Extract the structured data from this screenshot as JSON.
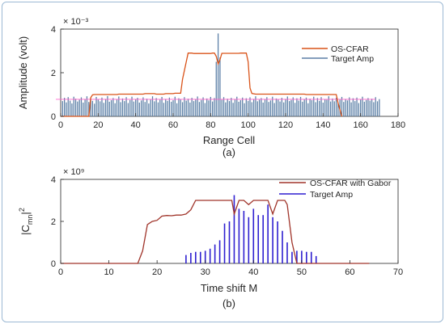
{
  "chart_data": [
    {
      "type": "bar",
      "panel_label": "(a)",
      "xlabel": "Range Cell",
      "ylabel": "Amplitude (volt)",
      "yscale_exponent": "× 10⁻³",
      "xlim": [
        0,
        180
      ],
      "ylim": [
        0,
        0.004
      ],
      "xticks": [
        "0",
        "20",
        "40",
        "60",
        "80",
        "100",
        "120",
        "140",
        "160",
        "180"
      ],
      "yticks": [
        "0",
        "2",
        "4"
      ],
      "grid": false,
      "legend_position": "right-middle",
      "colors": {
        "threshold": "#d95319",
        "bars": "#5b7fa6",
        "reference_line": "#ff66cc"
      },
      "series": [
        {
          "name": "OS-CFAR",
          "style": "line",
          "x": [
            0,
            15,
            16,
            17,
            18,
            30,
            31,
            44,
            45,
            50,
            51,
            55,
            56,
            60,
            61,
            64,
            65,
            67,
            68,
            70,
            71,
            80,
            81,
            82,
            83,
            84,
            85,
            86,
            95,
            96,
            99,
            100,
            101,
            102,
            104,
            105,
            130,
            131,
            147,
            148,
            150
          ],
          "y": [
            0,
            0,
            0.00085,
            0.00099,
            0.001,
            0.001,
            0.00102,
            0.00102,
            0.00104,
            0.00104,
            0.00102,
            0.00102,
            0.00104,
            0.00104,
            0.00106,
            0.00106,
            0.0017,
            0.0025,
            0.0029,
            0.0029,
            0.00288,
            0.00288,
            0.0029,
            0.0029,
            0.00275,
            0.0024,
            0.0026,
            0.00289,
            0.00289,
            0.0029,
            0.0029,
            0.0025,
            0.0013,
            0.00105,
            0.00102,
            0.00102,
            0.00102,
            0.001,
            0.001,
            0.0006,
            0
          ]
        },
        {
          "name": "Target Amp",
          "style": "bars",
          "x_start": 1,
          "values": [
            0.0007,
            0.00085,
            0.00064,
            0.00088,
            0.00072,
            0.00059,
            0.0009,
            0.00081,
            0.00068,
            0.00076,
            0.00087,
            0.00063,
            0.00079,
            0.00092,
            0.00066,
            0.00083,
            0.00071,
            0.00058,
            0.00089,
            0.00077,
            0.00069,
            0.00086,
            0.00062,
            0.0008,
            0.00093,
            0.00067,
            0.00074,
            0.00084,
            0.0006,
            0.00078,
            0.00091,
            0.00065,
            0.00082,
            0.0007,
            0.00088,
            0.00061,
            0.00075,
            0.0009,
            0.00068,
            0.00079,
            0.00085,
            0.00063,
            0.00073,
            0.00087,
            0.00066,
            0.00081,
            0.00059,
            0.00077,
            0.00092,
            0.00069,
            0.00084,
            0.00064,
            0.00076,
            0.00089,
            0.00062,
            0.0008,
            0.00071,
            0.00086,
            0.00067,
            0.00074,
            0.0009,
            0.0006,
            0.00083,
            0.00078,
            0.00065,
            0.00088,
            0.00072,
            0.00081,
            0.00063,
            0.00085,
            0.0007,
            0.00079,
            0.00091,
            0.00066,
            0.00075,
            0.00087,
            0.00061,
            0.00082,
            0.00073,
            0.00089,
            0.00068,
            0.00084,
            0.0025,
            0.0038,
            0.0027,
            0.00076,
            0.00088,
            0.00064,
            0.00081,
            0.0007,
            0.00085,
            0.00062,
            0.00078,
            0.0009,
            0.00067,
            0.00074,
            0.00086,
            0.0006,
            0.00083,
            0.00071,
            0.00087,
            0.00065,
            0.0008,
            0.00092,
            0.00069,
            0.00076,
            0.00084,
            0.00063,
            0.00079,
            0.00088,
            0.00066,
            0.00073,
            0.0009,
            0.00061,
            0.00082,
            0.00077,
            0.00068,
            0.00085,
            0.00064,
            0.0008,
            0.00091,
            0.0007,
            0.00075,
            0.00087,
            0.00062,
            0.00083,
            0.00072,
            0.00089,
            0.00067,
            0.00078,
            0.00086,
            0.0006,
            0.00081,
            0.00074,
            0.0009,
            0.00065,
            0.00084,
            0.00071,
            0.00088,
            0.00063,
            0.00079,
            0.00076,
            0.00092,
            0.00068,
            0.00082,
            0.00069,
            0.00085,
            0.00062,
            0.00077,
            0.00089,
            0.00066,
            0.0008,
            0.00073,
            0.00087,
            0.00064,
            0.00083,
            0.0007,
            0.00086,
            0.00061,
            0.00078,
            0.0009,
            0.00067,
            0.00075,
            0.00084,
            0.00072,
            0.00081,
            0.00065,
            0.00088,
            0.00069,
            0.00079
          ]
        }
      ],
      "reference_line": {
        "x_range": [
          -0.5,
          168
        ],
        "y": 0.00078
      }
    },
    {
      "type": "bar",
      "panel_label": "(b)",
      "xlabel": "Time shift M",
      "ylabel": "|C",
      "ylabel_sub": "mn",
      "ylabel_tail": "|",
      "ylabel_sup": "2",
      "yscale_exponent": "× 10⁹",
      "xlim": [
        0,
        70
      ],
      "ylim": [
        0,
        4000000000
      ],
      "xticks": [
        "0",
        "10",
        "20",
        "30",
        "40",
        "50",
        "60",
        "70"
      ],
      "yticks": [
        "0",
        "2",
        "4"
      ],
      "grid": false,
      "legend_position": "top-right",
      "colors": {
        "threshold": "#a0342a",
        "bars": "#2e1fd0"
      },
      "series": [
        {
          "name": "OS-CFAR with Gabor",
          "style": "line",
          "x": [
            0,
            16,
            17,
            18,
            19,
            20,
            21,
            22,
            23,
            24,
            25,
            26,
            27,
            28,
            29,
            30,
            31,
            32,
            33,
            34,
            35,
            35.5,
            36,
            37,
            38,
            39,
            40,
            41,
            42,
            43,
            44,
            45,
            46,
            46.5,
            47,
            48,
            49,
            50,
            51,
            52,
            53,
            54,
            55,
            60,
            64
          ],
          "y": [
            0,
            0,
            600000000,
            1850000000,
            2000000000,
            2050000000,
            2250000000,
            2280000000,
            2270000000,
            2300000000,
            2300000000,
            2350000000,
            2550000000,
            3000000000,
            3000000000,
            3000000000,
            3000000000,
            3000000000,
            3000000000,
            3000000000,
            3000000000,
            3000000000,
            2350000000,
            3000000000,
            3000000000,
            2800000000,
            3000000000,
            3000000000,
            3000000000,
            3000000000,
            2350000000,
            3000000000,
            3000000000,
            3000000000,
            2800000000,
            1000000000,
            0,
            0,
            0,
            0,
            0,
            0,
            0,
            0,
            0
          ]
        },
        {
          "name": "Target Amp",
          "style": "stem",
          "x": [
            26,
            27,
            28,
            29,
            30,
            31,
            32,
            33,
            34,
            35,
            36,
            37,
            38,
            39,
            40,
            41,
            42,
            43,
            44,
            45,
            46,
            47,
            48,
            49,
            50,
            51,
            52,
            53
          ],
          "y": [
            400000000,
            500000000,
            550000000,
            550000000,
            600000000,
            700000000,
            900000000,
            1100000000,
            1900000000,
            2000000000,
            3250000000,
            2600000000,
            2500000000,
            2200000000,
            2600000000,
            2300000000,
            2300000000,
            2800000000,
            2200000000,
            2000000000,
            1550000000,
            1000000000,
            550000000,
            600000000,
            600000000,
            550000000,
            550000000,
            350000000
          ]
        }
      ]
    }
  ]
}
